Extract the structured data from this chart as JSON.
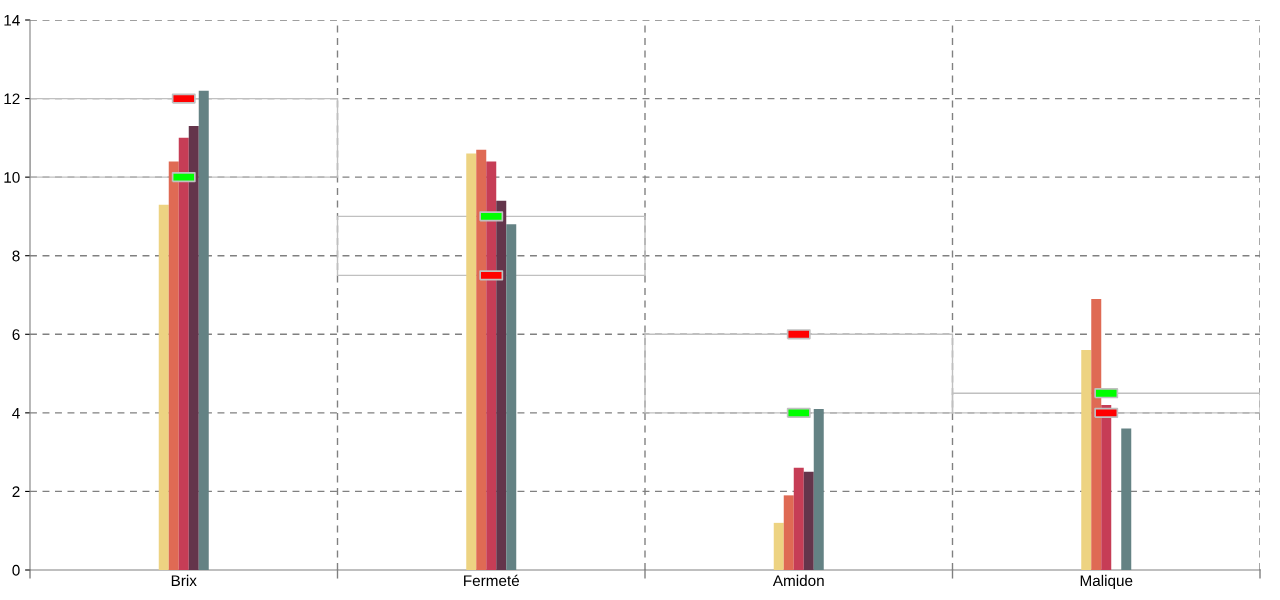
{
  "chart_data": {
    "type": "bar",
    "categories": [
      "Brix",
      "Fermeté",
      "Amidon",
      "Malique"
    ],
    "series": [
      {
        "color": "#edd382",
        "values": [
          9.3,
          10.6,
          1.2,
          5.6
        ]
      },
      {
        "color": "#df6a54",
        "values": [
          10.4,
          10.7,
          1.9,
          6.9
        ]
      },
      {
        "color": "#c63d56",
        "values": [
          11.0,
          10.4,
          2.6,
          4.2
        ]
      },
      {
        "color": "#64354b",
        "values": [
          11.3,
          9.4,
          2.5,
          null
        ]
      },
      {
        "color": "#648284",
        "values": [
          12.2,
          8.8,
          4.1,
          3.6
        ]
      },
      {
        "type": "scatter",
        "color": "#00ff00",
        "x": [
          "Brix",
          "Fermeté",
          "Amidon",
          "Malique"
        ],
        "values": [
          10,
          9,
          4,
          4.5
        ]
      },
      {
        "type": "scatter",
        "color": "#ff0000",
        "x": [
          "Brix",
          "Fermeté",
          "Amidon",
          "Malique"
        ],
        "values": [
          12,
          7.5,
          6,
          4
        ]
      }
    ],
    "ylim": [
      0,
      14
    ],
    "yticks": [
      0,
      2,
      4,
      6,
      8,
      10,
      12,
      14
    ],
    "grid": true,
    "line_style": "dashed"
  }
}
